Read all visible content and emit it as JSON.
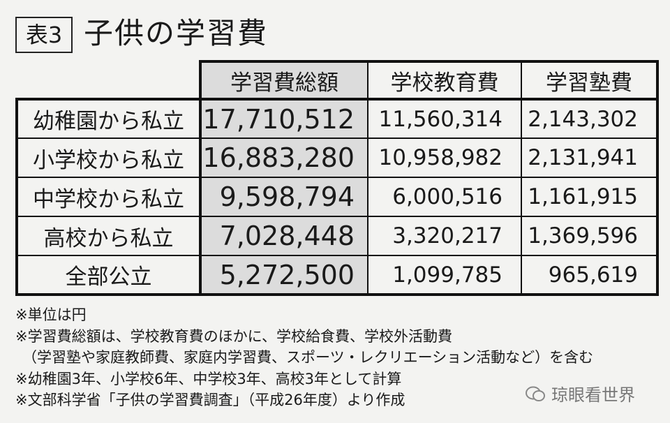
{
  "header": {
    "label": "表3",
    "title": "子供の学習費"
  },
  "table": {
    "columns": [
      "学習費総額",
      "学校教育費",
      "学習塾費"
    ],
    "rows": [
      [
        "幼稚園から私立",
        "17,710,512",
        "11,560,314",
        "2,143,302"
      ],
      [
        "小学校から私立",
        "16,883,280",
        "10,958,982",
        "2,131,941"
      ],
      [
        "中学校から私立",
        "9,598,794",
        "6,000,516",
        "1,161,915"
      ],
      [
        "高校から私立",
        "7,028,448",
        "3,320,217",
        "1,369,596"
      ],
      [
        "全部公立",
        "5,272,500",
        "1,099,785",
        "965,619"
      ]
    ]
  },
  "notes": [
    "※単位は円",
    "※学習費総額は、学校教育費のほかに、学校給食費、学校外活動費",
    "（学習塾や家庭教師費、家庭内学習費、スポーツ・レクリエーション活動など）を含む",
    "※幼稚園3年、小学校6年、中学校3年、高校3年として計算",
    "※文部科学省「子供の学習費調査」（平成26年度）より作成"
  ],
  "watermark": "琼眼看世界"
}
